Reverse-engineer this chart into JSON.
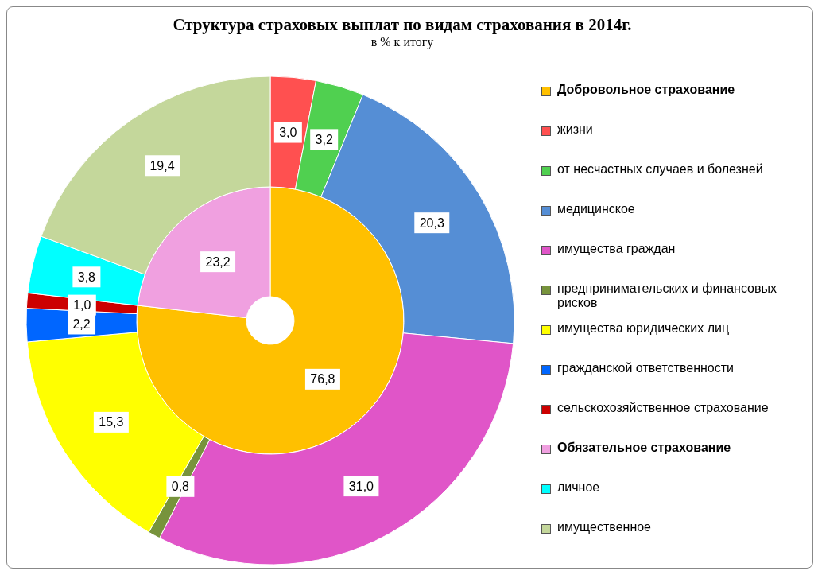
{
  "chart_data": {
    "type": "donut",
    "title": "Структура  страховых выплат по видам страхования  в 2014г.",
    "subtitle": "в % к итогу",
    "categories": [
      "Добровольное страхование",
      "жизни",
      "от несчастных случаев и болезней",
      "медицинское",
      "имущества граждан",
      "предпринимательских и финансовых рисков",
      "имущества юридических лиц",
      "гражданской ответственности",
      "сельскохозяйственное страхование",
      "Обязательное страхование",
      "личное",
      "имущественное"
    ],
    "colors": [
      "#ffc000",
      "#ff5050",
      "#50d050",
      "#558ed5",
      "#e055c8",
      "#77933c",
      "#ffff00",
      "#0066ff",
      "#cc0000",
      "#f0a0e0",
      "#00ffff",
      "#c4d79b"
    ],
    "series": [
      {
        "values": [
          76.8,
          null,
          null,
          null,
          null,
          null,
          null,
          null,
          null,
          23.2,
          null,
          null
        ],
        "value_labels": [
          "76,8",
          null,
          null,
          null,
          null,
          null,
          null,
          null,
          null,
          "23,2",
          null,
          null
        ]
      },
      {
        "values": [
          null,
          3.0,
          3.2,
          20.3,
          31.0,
          0.8,
          15.3,
          2.2,
          1.0,
          null,
          3.8,
          19.4
        ],
        "value_labels": [
          null,
          "3,0",
          "3,2",
          "20,3",
          "31,0",
          "0,8",
          "15,3",
          "2,2",
          "1,0",
          null,
          "3,8",
          "19,4"
        ]
      }
    ],
    "legend": "right"
  }
}
